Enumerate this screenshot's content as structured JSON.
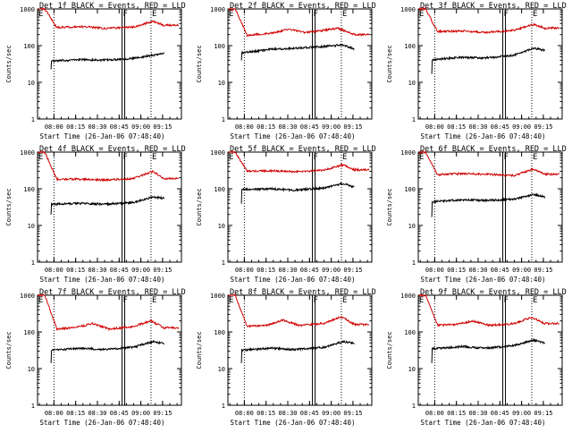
{
  "figure": {
    "colors": {
      "events": "#000000",
      "lld": "#d00000",
      "axes": "#000000"
    }
  },
  "chart_data": [
    {
      "type": "line",
      "title": "Det 1f BLACK = Events, RED = LLD",
      "ylabel": "Counts/sec",
      "xlabel": "Start Time (26-Jan-06 07:48:40)",
      "x_ticks": [
        "08:00",
        "08:15",
        "08:30",
        "08:45",
        "09:00",
        "09:15"
      ],
      "y_ticks": [
        "1",
        "10",
        "100",
        "1000"
      ],
      "y_scale": "log",
      "ylim": [
        1,
        1000
      ],
      "markers": {
        "F": "08:47",
        "E": "09:07"
      },
      "series": [
        {
          "name": "BLACK = Events",
          "start_value": 40,
          "profile": [
            [
              0,
              38
            ],
            [
              25,
              42
            ],
            [
              45,
              40
            ],
            [
              72,
              45
            ],
            [
              90,
              55
            ],
            [
              100,
              62
            ]
          ]
        },
        {
          "name": "RED = LLD",
          "start_value": 1000,
          "profile": [
            [
              0,
              310
            ],
            [
              25,
              330
            ],
            [
              45,
              300
            ],
            [
              72,
              320
            ],
            [
              90,
              460
            ],
            [
              100,
              360
            ]
          ]
        }
      ]
    },
    {
      "type": "line",
      "title": "Det 2f BLACK = Events, RED = LLD",
      "ylabel": "Counts/sec",
      "xlabel": "Start Time (26-Jan-06 07:48:40)",
      "x_ticks": [
        "08:00",
        "08:15",
        "08:30",
        "08:45",
        "09:00",
        "09:15"
      ],
      "y_ticks": [
        "1",
        "10",
        "100",
        "1000"
      ],
      "y_scale": "log",
      "ylim": [
        1,
        1000
      ],
      "markers": {
        "F": "08:47",
        "E": "09:07"
      },
      "series": [
        {
          "name": "BLACK = Events",
          "start_value": 70,
          "profile": [
            [
              0,
              65
            ],
            [
              25,
              80
            ],
            [
              45,
              85
            ],
            [
              72,
              95
            ],
            [
              90,
              105
            ],
            [
              100,
              80
            ]
          ]
        },
        {
          "name": "RED = LLD",
          "start_value": 1000,
          "profile": [
            [
              0,
              190
            ],
            [
              25,
              220
            ],
            [
              40,
              280
            ],
            [
              55,
              230
            ],
            [
              72,
              260
            ],
            [
              85,
              300
            ],
            [
              100,
              200
            ]
          ]
        }
      ]
    },
    {
      "type": "line",
      "title": "Det 3f BLACK = Events, RED = LLD",
      "ylabel": "Counts/sec",
      "xlabel": "Start Time (26-Jan-06 07:48:40)",
      "x_ticks": [
        "08:00",
        "08:15",
        "08:30",
        "08:45",
        "09:00",
        "09:15"
      ],
      "y_ticks": [
        "1",
        "10",
        "100",
        "1000"
      ],
      "y_scale": "log",
      "ylim": [
        1,
        1000
      ],
      "markers": {
        "F": "08:47",
        "E": "09:07"
      },
      "series": [
        {
          "name": "BLACK = Events",
          "start_value": 30,
          "profile": [
            [
              0,
              42
            ],
            [
              25,
              48
            ],
            [
              45,
              46
            ],
            [
              72,
              55
            ],
            [
              90,
              85
            ],
            [
              100,
              75
            ]
          ]
        },
        {
          "name": "RED = LLD",
          "start_value": 1000,
          "profile": [
            [
              0,
              240
            ],
            [
              25,
              250
            ],
            [
              45,
              230
            ],
            [
              72,
              260
            ],
            [
              90,
              380
            ],
            [
              100,
              300
            ]
          ]
        }
      ]
    },
    {
      "type": "line",
      "title": "Det 4f BLACK = Events, RED = LLD",
      "ylabel": "Counts/sec",
      "xlabel": "Start Time (26-Jan-06 07:48:40)",
      "x_ticks": [
        "08:00",
        "08:15",
        "08:30",
        "08:45",
        "09:00",
        "09:15"
      ],
      "y_ticks": [
        "1",
        "10",
        "100",
        "1000"
      ],
      "y_scale": "log",
      "ylim": [
        1,
        1000
      ],
      "markers": {
        "F": "08:47",
        "E": "09:07"
      },
      "series": [
        {
          "name": "BLACK = Events",
          "start_value": 35,
          "profile": [
            [
              0,
              38
            ],
            [
              25,
              40
            ],
            [
              45,
              38
            ],
            [
              72,
              42
            ],
            [
              90,
              60
            ],
            [
              100,
              55
            ]
          ]
        },
        {
          "name": "RED = LLD",
          "start_value": 1000,
          "profile": [
            [
              0,
              180
            ],
            [
              20,
              185
            ],
            [
              45,
              175
            ],
            [
              72,
              190
            ],
            [
              90,
              300
            ],
            [
              100,
              190
            ]
          ]
        }
      ]
    },
    {
      "type": "line",
      "title": "Det 5f BLACK = Events, RED = LLD",
      "ylabel": "Counts/sec",
      "xlabel": "Start Time (26-Jan-06 07:48:40)",
      "x_ticks": [
        "08:00",
        "08:15",
        "08:30",
        "08:45",
        "09:00",
        "09:15"
      ],
      "y_ticks": [
        "1",
        "10",
        "100",
        "1000"
      ],
      "y_scale": "log",
      "ylim": [
        1,
        1000
      ],
      "markers": {
        "F": "08:47",
        "E": "09:07"
      },
      "series": [
        {
          "name": "BLACK = Events",
          "start_value": 70,
          "profile": [
            [
              0,
              95
            ],
            [
              25,
              100
            ],
            [
              45,
              92
            ],
            [
              72,
              105
            ],
            [
              90,
              140
            ],
            [
              100,
              110
            ]
          ]
        },
        {
          "name": "RED = LLD",
          "start_value": 1000,
          "profile": [
            [
              0,
              300
            ],
            [
              25,
              310
            ],
            [
              45,
              290
            ],
            [
              72,
              320
            ],
            [
              90,
              450
            ],
            [
              100,
              330
            ]
          ]
        }
      ]
    },
    {
      "type": "line",
      "title": "Det 6f BLACK = Events, RED = LLD",
      "ylabel": "Counts/sec",
      "xlabel": "Start Time (26-Jan-06 07:48:40)",
      "x_ticks": [
        "08:00",
        "08:15",
        "08:30",
        "08:45",
        "09:00",
        "09:15"
      ],
      "y_ticks": [
        "1",
        "10",
        "100",
        "1000"
      ],
      "y_scale": "log",
      "ylim": [
        1,
        1000
      ],
      "markers": {
        "F": "08:47",
        "E": "09:07"
      },
      "series": [
        {
          "name": "BLACK = Events",
          "start_value": 30,
          "profile": [
            [
              0,
              45
            ],
            [
              25,
              50
            ],
            [
              45,
              48
            ],
            [
              72,
              52
            ],
            [
              90,
              70
            ],
            [
              100,
              60
            ]
          ]
        },
        {
          "name": "RED = LLD",
          "start_value": 1000,
          "profile": [
            [
              0,
              240
            ],
            [
              25,
              260
            ],
            [
              45,
              250
            ],
            [
              72,
              230
            ],
            [
              90,
              350
            ],
            [
              100,
              250
            ]
          ]
        }
      ]
    },
    {
      "type": "line",
      "title": "Det 7f BLACK = Events, RED = LLD",
      "ylabel": "Counts/sec",
      "xlabel": "Start Time (26-Jan-06 07:48:40)",
      "x_ticks": [
        "08:00",
        "08:15",
        "08:30",
        "08:45",
        "09:00",
        "09:15"
      ],
      "y_ticks": [
        "1",
        "10",
        "100",
        "1000"
      ],
      "y_scale": "log",
      "ylim": [
        1,
        1000
      ],
      "markers": {
        "F": "08:47",
        "E": "09:07"
      },
      "series": [
        {
          "name": "BLACK = Events",
          "start_value": 25,
          "profile": [
            [
              0,
              32
            ],
            [
              25,
              36
            ],
            [
              45,
              33
            ],
            [
              72,
              38
            ],
            [
              90,
              55
            ],
            [
              100,
              48
            ]
          ]
        },
        {
          "name": "RED = LLD",
          "start_value": 1000,
          "profile": [
            [
              0,
              120
            ],
            [
              20,
              130
            ],
            [
              35,
              170
            ],
            [
              50,
              120
            ],
            [
              72,
              140
            ],
            [
              88,
              200
            ],
            [
              100,
              130
            ]
          ]
        }
      ]
    },
    {
      "type": "line",
      "title": "Det 8f BLACK = Events, RED = LLD",
      "ylabel": "Counts/sec",
      "xlabel": "Start Time (26-Jan-06 07:48:40)",
      "x_ticks": [
        "08:00",
        "08:15",
        "08:30",
        "08:45",
        "09:00",
        "09:15"
      ],
      "y_ticks": [
        "1",
        "10",
        "100",
        "1000"
      ],
      "y_scale": "log",
      "ylim": [
        1,
        1000
      ],
      "markers": {
        "F": "08:47",
        "E": "09:07"
      },
      "series": [
        {
          "name": "BLACK = Events",
          "start_value": 25,
          "profile": [
            [
              0,
              32
            ],
            [
              25,
              36
            ],
            [
              45,
              33
            ],
            [
              72,
              38
            ],
            [
              90,
              55
            ],
            [
              100,
              48
            ]
          ]
        },
        {
          "name": "RED = LLD",
          "start_value": 1000,
          "profile": [
            [
              0,
              140
            ],
            [
              20,
              150
            ],
            [
              35,
              210
            ],
            [
              50,
              150
            ],
            [
              72,
              170
            ],
            [
              88,
              260
            ],
            [
              100,
              160
            ]
          ]
        }
      ]
    },
    {
      "type": "line",
      "title": "Det 9f BLACK = Events, RED = LLD",
      "ylabel": "Counts/sec",
      "xlabel": "Start Time (26-Jan-06 07:48:40)",
      "x_ticks": [
        "08:00",
        "08:15",
        "08:30",
        "08:45",
        "09:00",
        "09:15"
      ],
      "y_ticks": [
        "1",
        "10",
        "100",
        "1000"
      ],
      "y_scale": "log",
      "ylim": [
        1,
        1000
      ],
      "markers": {
        "F": "08:47",
        "E": "09:07"
      },
      "series": [
        {
          "name": "BLACK = Events",
          "start_value": 25,
          "profile": [
            [
              0,
              35
            ],
            [
              25,
              40
            ],
            [
              45,
              36
            ],
            [
              72,
              42
            ],
            [
              90,
              60
            ],
            [
              100,
              50
            ]
          ]
        },
        {
          "name": "RED = LLD",
          "start_value": 1000,
          "profile": [
            [
              0,
              150
            ],
            [
              20,
              160
            ],
            [
              35,
              200
            ],
            [
              50,
              150
            ],
            [
              72,
              170
            ],
            [
              88,
              250
            ],
            [
              100,
              170
            ]
          ]
        }
      ]
    }
  ]
}
